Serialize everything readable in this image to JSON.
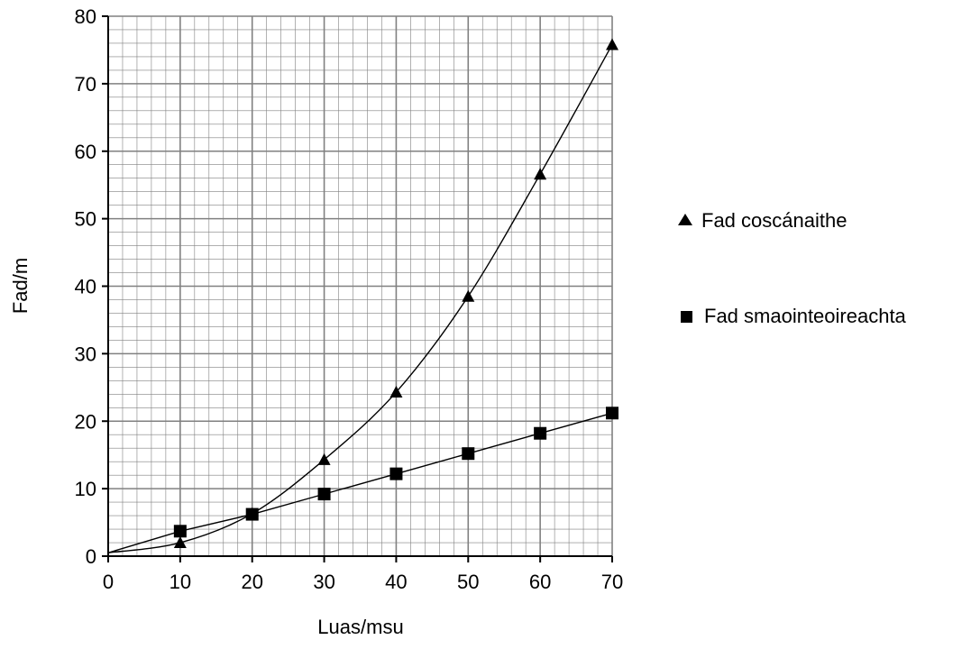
{
  "chart_data": {
    "type": "line",
    "xlabel": "Luas/msu",
    "ylabel": "Fad/m",
    "xlim": [
      0,
      70
    ],
    "ylim": [
      0,
      80
    ],
    "xticks": [
      "0",
      "10",
      "20",
      "30",
      "40",
      "50",
      "60",
      "70"
    ],
    "yticks": [
      "0",
      "10",
      "20",
      "30",
      "40",
      "50",
      "60",
      "70",
      "80"
    ],
    "grid": true,
    "legend_position": "right",
    "series": [
      {
        "name": "Fad coscánaithe",
        "marker": "triangle",
        "points": [
          [
            0,
            0.5
          ],
          [
            10,
            2
          ],
          [
            20,
            6.3
          ],
          [
            30,
            14.3
          ],
          [
            40,
            24.3
          ],
          [
            50,
            38.5
          ],
          [
            60,
            56.6
          ],
          [
            70,
            75.8
          ]
        ]
      },
      {
        "name": "Fad smaointeoireachta",
        "marker": "square",
        "points": [
          [
            0,
            0.5
          ],
          [
            10,
            3.7
          ],
          [
            20,
            6.2
          ],
          [
            30,
            9.2
          ],
          [
            40,
            12.2
          ],
          [
            50,
            15.2
          ],
          [
            60,
            18.2
          ],
          [
            70,
            21.2
          ]
        ]
      }
    ]
  },
  "colors": {
    "line": "#000000",
    "grid": "#808080",
    "background": "#ffffff"
  }
}
